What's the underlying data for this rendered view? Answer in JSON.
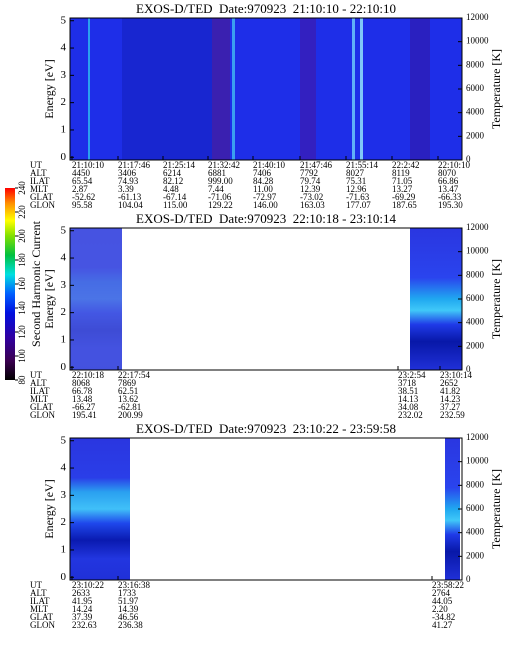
{
  "colorbar": {
    "label": "Second Harmonic Current",
    "ticks": [
      80,
      100,
      120,
      140,
      160,
      180,
      200,
      220,
      240
    ],
    "lim": [
      80,
      240
    ]
  },
  "chart_data": [
    {
      "type": "spectrogram",
      "title": "EXOS-D/TED  Date:970923  21:10:10 - 22:10:10",
      "ylabel": "Energy [eV]",
      "y2label": "Temperature [K]",
      "ylim": [
        -0.1,
        5.1
      ],
      "yticks": [
        0,
        1,
        2,
        3,
        4,
        5
      ],
      "y2lim": [
        0,
        12000
      ],
      "y2ticks": [
        0,
        2000,
        4000,
        6000,
        8000,
        10000,
        12000
      ],
      "table": {
        "rows": [
          "UT",
          "ALT",
          "ILAT",
          "MLT",
          "GLAT",
          "GLON"
        ],
        "values": [
          [
            "21:10:10",
            "21:17:46",
            "21:25:14",
            "21:32:42",
            "21:40:10",
            "21:47:46",
            "21:55:14",
            "22:2:42",
            "22:10:10"
          ],
          [
            "4450",
            "3406",
            "6214",
            "6881",
            "7406",
            "7792",
            "8027",
            "8119",
            "8070"
          ],
          [
            "65.54",
            "74.93",
            "82.12",
            "999.00",
            "84.28",
            "79.74",
            "75.31",
            "71.05",
            "66.86"
          ],
          [
            "2.87",
            "3.39",
            "4.48",
            "7.44",
            "11.00",
            "12.39",
            "12.96",
            "13.27",
            "13.47"
          ],
          [
            "-52.62",
            "-61.13",
            "-67.14",
            "-71.06",
            "-72.97",
            "-73.02",
            "-71.63",
            "-69.29",
            "-66.33"
          ],
          [
            "95.58",
            "104.04",
            "115.00",
            "129.22",
            "146.00",
            "163.03",
            "177.07",
            "187.65",
            "195.30"
          ]
        ]
      }
    },
    {
      "type": "spectrogram",
      "title": "EXOS-D/TED  Date:970923  22:10:18 - 23:10:14",
      "ylabel": "Energy [eV]",
      "y2label": "Temperature [K]",
      "ylim": [
        -0.1,
        5.1
      ],
      "yticks": [
        0,
        1,
        2,
        3,
        4,
        5
      ],
      "y2lim": [
        0,
        12000
      ],
      "y2ticks": [
        0,
        2000,
        4000,
        6000,
        8000,
        10000,
        12000
      ],
      "table": {
        "rows": [
          "UT",
          "ALT",
          "ILAT",
          "MLT",
          "GLAT",
          "GLON"
        ],
        "values": [
          [
            "22:10:18",
            "22:17:54",
            "23:2:54",
            "23:10:14"
          ],
          [
            "8068",
            "7869",
            "3718",
            "2652"
          ],
          [
            "66.78",
            "62.51",
            "38.51",
            "41.82"
          ],
          [
            "13.48",
            "13.62",
            "14.13",
            "14.23"
          ],
          [
            "-66.27",
            "-62.81",
            "34.08",
            "37.27"
          ],
          [
            "195.41",
            "200.99",
            "232.02",
            "232.59"
          ]
        ]
      }
    },
    {
      "type": "spectrogram",
      "title": "EXOS-D/TED  Date:970923  23:10:22 - 23:59:58",
      "ylabel": "Energy [eV]",
      "y2label": "Temperature [K]",
      "ylim": [
        -0.1,
        5.1
      ],
      "yticks": [
        0,
        1,
        2,
        3,
        4,
        5
      ],
      "y2lim": [
        0,
        12000
      ],
      "y2ticks": [
        0,
        2000,
        4000,
        6000,
        8000,
        10000,
        12000
      ],
      "table": {
        "rows": [
          "UT",
          "ALT",
          "ILAT",
          "MLT",
          "GLAT",
          "GLON"
        ],
        "values": [
          [
            "23:10:22",
            "23:16:38",
            "23:58:22"
          ],
          [
            "2633",
            "1733",
            "2764"
          ],
          [
            "41.95",
            "51.97",
            "44.05"
          ],
          [
            "14.24",
            "14.39",
            "2.20"
          ],
          [
            "37.39",
            "46.56",
            "-34.82"
          ],
          [
            "232.63",
            "236.38",
            "41.27"
          ]
        ]
      }
    }
  ]
}
